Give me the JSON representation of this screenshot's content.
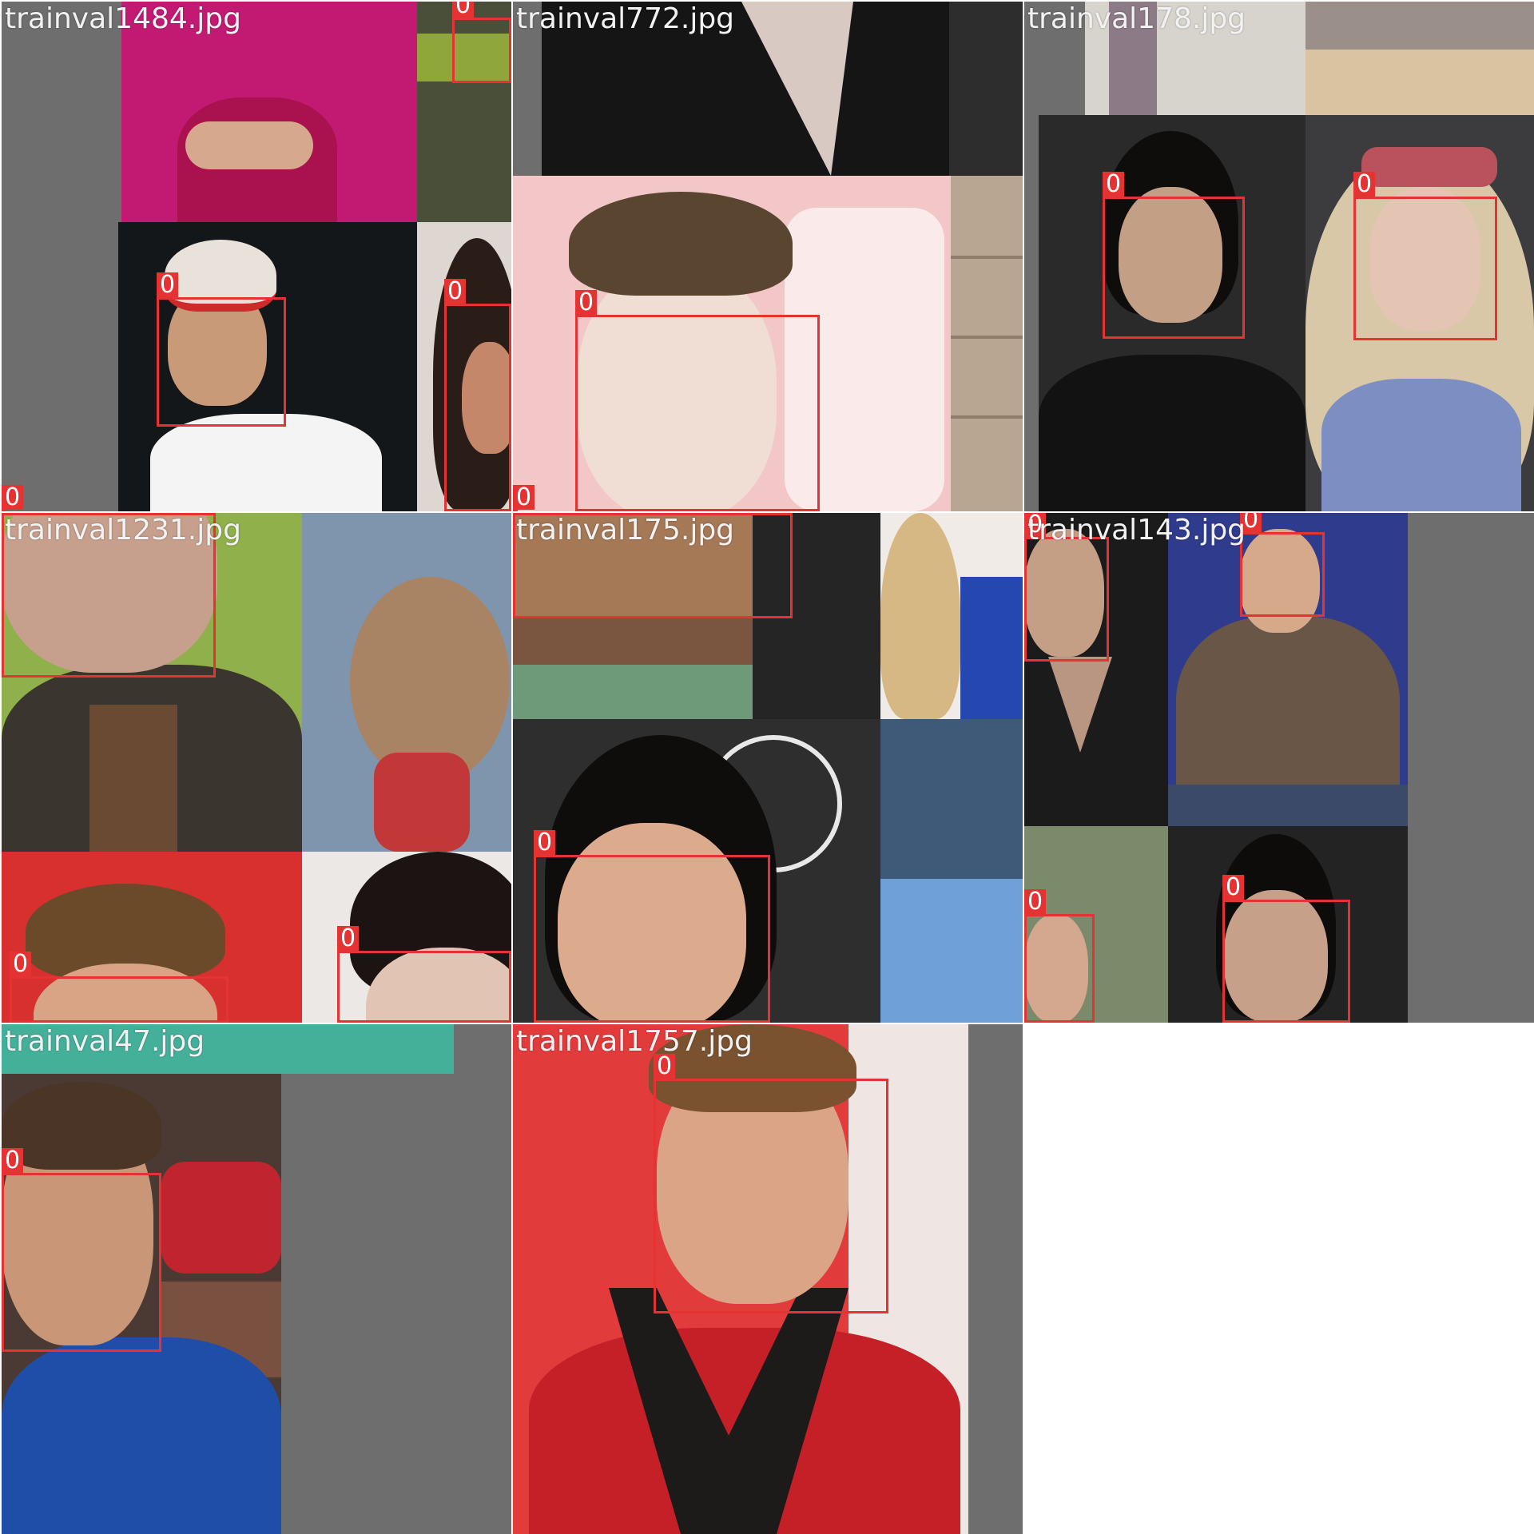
{
  "tiles": [
    {
      "filename": "trainval1484.jpg"
    },
    {
      "filename": "trainval772.jpg"
    },
    {
      "filename": "trainval178.jpg"
    },
    {
      "filename": "trainval1231.jpg"
    },
    {
      "filename": "trainval175.jpg"
    },
    {
      "filename": "trainval143.jpg"
    },
    {
      "filename": "trainval47.jpg"
    },
    {
      "filename": "trainval1757.jpg"
    }
  ],
  "class_label": "0",
  "colors": {
    "box": "#e53333",
    "pad": "#6e6e6e",
    "text": "#f2f2f2"
  }
}
